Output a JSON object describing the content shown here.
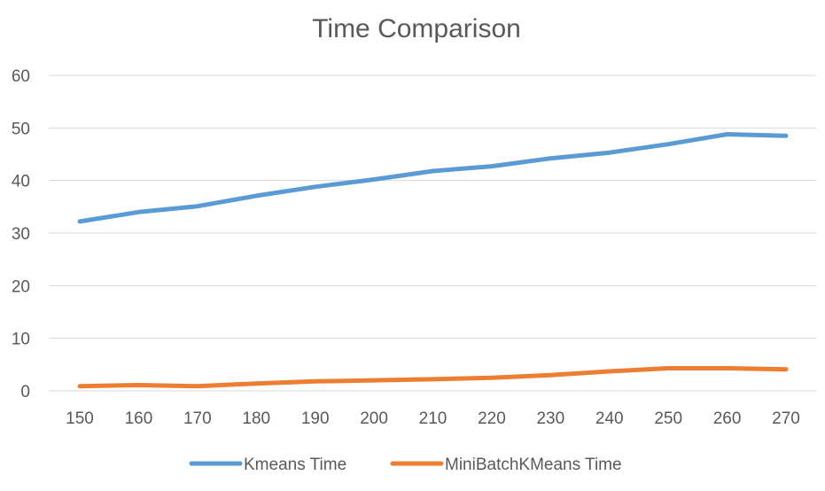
{
  "chart_data": {
    "type": "line",
    "title": "Time Comparison",
    "xlabel": "",
    "ylabel": "",
    "categories": [
      "150",
      "160",
      "170",
      "180",
      "190",
      "200",
      "210",
      "220",
      "230",
      "240",
      "250",
      "260",
      "270"
    ],
    "ylim": [
      0,
      60
    ],
    "yticks": [
      0,
      10,
      20,
      30,
      40,
      50,
      60
    ],
    "grid": true,
    "legend_position": "bottom",
    "series": [
      {
        "name": "Kmeans Time",
        "color": "#5b9bd5",
        "values": [
          32.2,
          34.0,
          35.1,
          37.1,
          38.8,
          40.2,
          41.8,
          42.7,
          44.2,
          45.3,
          46.9,
          48.8,
          48.5
        ]
      },
      {
        "name": "MiniBatchKMeans Time",
        "color": "#ed7d31",
        "values": [
          0.9,
          1.1,
          0.9,
          1.4,
          1.8,
          2.0,
          2.2,
          2.5,
          3.0,
          3.7,
          4.3,
          4.3,
          4.1
        ]
      }
    ]
  }
}
